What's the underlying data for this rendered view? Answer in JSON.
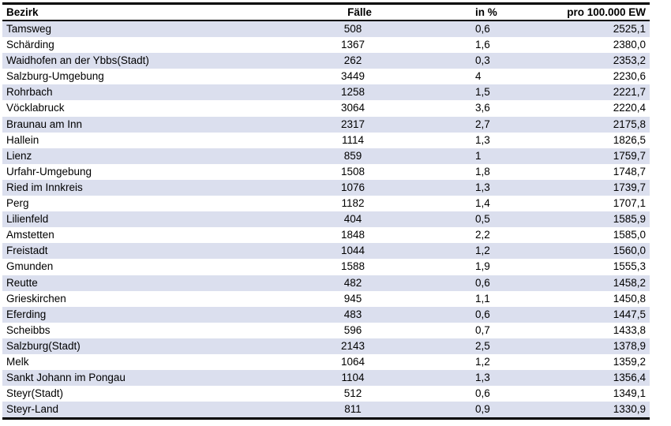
{
  "colors": {
    "stripe_row": "#dbdfee",
    "rule": "#000000",
    "background": "#ffffff",
    "text": "#000000"
  },
  "chart_data": {
    "type": "table",
    "columns": [
      "Bezirk",
      "Fälle",
      "in %",
      "pro 100.000 EW"
    ],
    "rows": [
      [
        "Tamsweg",
        "508",
        "0,6",
        "2525,1"
      ],
      [
        "Schärding",
        "1367",
        "1,6",
        "2380,0"
      ],
      [
        "Waidhofen an der Ybbs(Stadt)",
        "262",
        "0,3",
        "2353,2"
      ],
      [
        "Salzburg-Umgebung",
        "3449",
        "4",
        "2230,6"
      ],
      [
        "Rohrbach",
        "1258",
        "1,5",
        "2221,7"
      ],
      [
        "Vöcklabruck",
        "3064",
        "3,6",
        "2220,4"
      ],
      [
        "Braunau am Inn",
        "2317",
        "2,7",
        "2175,8"
      ],
      [
        "Hallein",
        "1114",
        "1,3",
        "1826,5"
      ],
      [
        "Lienz",
        "859",
        "1",
        "1759,7"
      ],
      [
        "Urfahr-Umgebung",
        "1508",
        "1,8",
        "1748,7"
      ],
      [
        "Ried im Innkreis",
        "1076",
        "1,3",
        "1739,7"
      ],
      [
        "Perg",
        "1182",
        "1,4",
        "1707,1"
      ],
      [
        "Lilienfeld",
        "404",
        "0,5",
        "1585,9"
      ],
      [
        "Amstetten",
        "1848",
        "2,2",
        "1585,0"
      ],
      [
        "Freistadt",
        "1044",
        "1,2",
        "1560,0"
      ],
      [
        "Gmunden",
        "1588",
        "1,9",
        "1555,3"
      ],
      [
        "Reutte",
        "482",
        "0,6",
        "1458,2"
      ],
      [
        "Grieskirchen",
        "945",
        "1,1",
        "1450,8"
      ],
      [
        "Eferding",
        "483",
        "0,6",
        "1447,5"
      ],
      [
        "Scheibbs",
        "596",
        "0,7",
        "1433,8"
      ],
      [
        "Salzburg(Stadt)",
        "2143",
        "2,5",
        "1378,9"
      ],
      [
        "Melk",
        "1064",
        "1,2",
        "1359,2"
      ],
      [
        "Sankt Johann im Pongau",
        "1104",
        "1,3",
        "1356,4"
      ],
      [
        "Steyr(Stadt)",
        "512",
        "0,6",
        "1349,1"
      ],
      [
        "Steyr-Land",
        "811",
        "0,9",
        "1330,9"
      ]
    ],
    "layout": {
      "striped": true,
      "stripe_pattern": "odd-rows-shaded",
      "header_bold": true,
      "vertical_gridlines": false,
      "alignments": [
        "left",
        "center",
        "left",
        "right"
      ]
    }
  }
}
